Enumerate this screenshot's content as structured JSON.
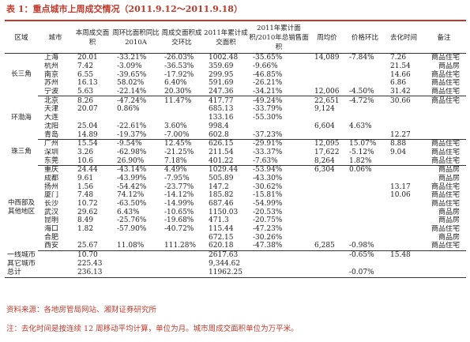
{
  "title": "表 1：重点城市上周成交情况（2011.9.12～2011.9.18）",
  "columns": [
    "区域",
    "城市",
    "本周成交面积",
    "周环比面积同比2010A",
    "周成交面积成交环比",
    "2011年累计成交面积",
    "2011年累计面积/2010年总销售面积",
    "周均价",
    "价格环比",
    "去化时间",
    "备注"
  ],
  "groups": [
    {
      "region": "长三角",
      "rows": [
        [
          "上海",
          "20.01",
          "-33.21%",
          "-26.03%",
          "1002.48",
          "-35.65%",
          "14,089",
          "-7.84%",
          "7.26",
          "商品住宅"
        ],
        [
          "杭州",
          "7.42",
          "-3.09%",
          "-36.53%",
          "359.69",
          "-9.66%",
          "",
          "",
          "21.54",
          "商品房"
        ],
        [
          "南京",
          "6.55",
          "-39.65%",
          "-17.92%",
          "299.95",
          "-46.85%",
          "",
          "",
          "14.66",
          "商品住宅"
        ],
        [
          "苏州",
          "16.13",
          "58.02%",
          "6.40%",
          "591.69",
          "-26.21%",
          "",
          "",
          "6.86",
          "商品住宅"
        ],
        [
          "宁波",
          "5.63",
          "-22.14%",
          "20.30%",
          "247.36",
          "-34.21%",
          "12,006",
          "-4.50%",
          "31.42",
          "商品住宅"
        ]
      ]
    },
    {
      "region": "环渤海",
      "rows": [
        [
          "北京",
          "8.26",
          "-47.24%",
          "11.47%",
          "417.77",
          "-49.24%",
          "22,651",
          "-4.72%",
          "30.66",
          "商品住宅"
        ],
        [
          "天津",
          "20.07",
          "0.86%",
          "",
          "685.13",
          "-33.79%",
          "9,124",
          "",
          "",
          ""
        ],
        [
          "大连",
          "",
          "",
          "",
          "133.16",
          "-55.30%",
          "",
          "",
          "",
          ""
        ],
        [
          "沈阳",
          "25.04",
          "-22.61%",
          "3.60%",
          "998.4",
          "",
          "6,604",
          "4.63%",
          "",
          ""
        ],
        [
          "青岛",
          "14.89",
          "-19.37%",
          "-7.00%",
          "602.8",
          "-37.23%",
          "",
          "",
          "12.27",
          ""
        ]
      ]
    },
    {
      "region": "珠三角",
      "rows": [
        [
          "广州",
          "15.54",
          "-9.54%",
          "12.45%",
          "626.15",
          "-29.91%",
          "12,095",
          "15.07%",
          "8.88",
          "商品住宅"
        ],
        [
          "深圳",
          "3.26",
          "-62.98%",
          "-21.25%",
          "211.54",
          "-33.37%",
          "17,622",
          "-5.12%",
          "9.04",
          "商品住宅"
        ],
        [
          "东莞",
          "10.6",
          "26.90%",
          "7.18%",
          "401.22",
          "-7.63%",
          "8,264",
          "1.82%",
          "",
          "商品住宅"
        ]
      ]
    },
    {
      "region": "中西部及其他地区",
      "rows": [
        [
          "重庆",
          "24.44",
          "-43.14%",
          "4.49%",
          "1029.44",
          "-53.94%",
          "6,304",
          "0.06%",
          "",
          "商品房"
        ],
        [
          "成都",
          "9.61",
          "-43.99%",
          "-7.95%",
          "505.89",
          "-43.30%",
          "",
          "",
          "",
          "商品房"
        ],
        [
          "扬州",
          "1.56",
          "-54.42%",
          "-23.77%",
          "147.2",
          "-30.62%",
          "",
          "",
          "13.17",
          "商品住宅"
        ],
        [
          "厦门",
          "7.48",
          "74.12%",
          "-14.12%",
          "185.82",
          "-15.81%",
          "",
          "",
          "10.06",
          "商品住宅"
        ],
        [
          "长沙",
          "10.72",
          "-63.50%",
          "-14.99%",
          "687.46",
          "-54.99%",
          "",
          "",
          "",
          "商品住宅"
        ],
        [
          "武汉",
          "29.62",
          "6.43%",
          "-10.65%",
          "1150.03",
          "-20.53%",
          "",
          "",
          "",
          "商品房"
        ],
        [
          "昆明",
          "8.49",
          "-25.76%",
          "-19.68%",
          "471.3",
          "-20.75%",
          "",
          "",
          "",
          "商品房"
        ],
        [
          "海口",
          "1.82",
          "-57.90%",
          "-40.72%",
          "115.44",
          "-47.23%",
          "",
          "",
          "",
          "商品住宅"
        ],
        [
          "合肥",
          "",
          "",
          "",
          "672.15",
          "-30.26%",
          "",
          "",
          "",
          "商品房"
        ],
        [
          "西安",
          "25.67",
          "11.08%",
          "111.28%",
          "620.18",
          "-47.38%",
          "6,285",
          "-0.98%",
          "",
          "商品住宅"
        ]
      ]
    }
  ],
  "summary": [
    [
      "一线城市",
      "10.70",
      "",
      "",
      "2617.63",
      "",
      "",
      "-0.65%",
      "15.48",
      ""
    ],
    [
      "其它城市",
      "225.43",
      "",
      "",
      "9,344.62",
      "",
      "",
      "",
      "",
      ""
    ],
    [
      "总计",
      "236.13",
      "",
      "",
      "11962.25",
      "",
      "",
      "-0.07%",
      "",
      ""
    ]
  ],
  "source": "资料来源：各地房管局网站、湘财证券研究所",
  "footnote": "注：去化时间是按连续 12 周移动平均计算，单位为月。城市周成交面积单位为万平米。"
}
